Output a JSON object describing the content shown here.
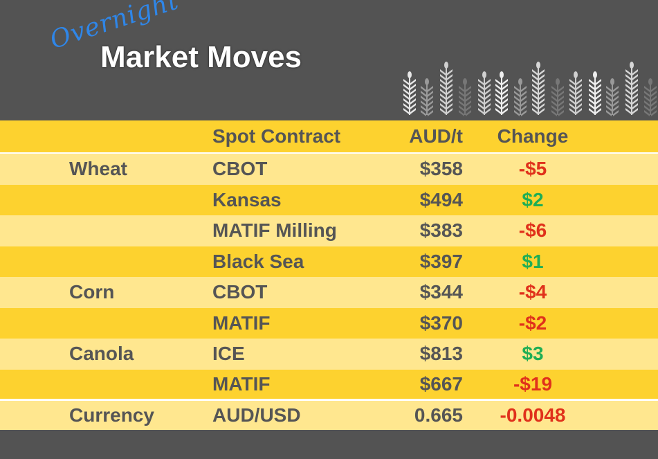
{
  "header": {
    "script_word": "Overnight",
    "title": "Market Moves",
    "decoration_icon": "wheat-stalks"
  },
  "colors": {
    "background": "#535353",
    "header_row": "#fdd22f",
    "row_light": "#ffe78f",
    "row_dark": "#fdd22f",
    "negative": "#e0311b",
    "positive": "#1fae55",
    "script": "#2f86e8"
  },
  "table": {
    "columns": [
      "",
      "Spot Contract",
      "AUD/t",
      "Change"
    ],
    "rows": [
      {
        "commodity": "Wheat",
        "contract": "CBOT",
        "price": "$358",
        "change": "-$5",
        "direction": "down"
      },
      {
        "commodity": "",
        "contract": "Kansas",
        "price": "$494",
        "change": "$2",
        "direction": "up"
      },
      {
        "commodity": "",
        "contract": "MATIF Milling",
        "price": "$383",
        "change": "-$6",
        "direction": "down"
      },
      {
        "commodity": "",
        "contract": "Black Sea",
        "price": "$397",
        "change": "$1",
        "direction": "up"
      },
      {
        "commodity": "Corn",
        "contract": "CBOT",
        "price": "$344",
        "change": "-$4",
        "direction": "down"
      },
      {
        "commodity": "",
        "contract": "MATIF",
        "price": "$370",
        "change": "-$2",
        "direction": "down"
      },
      {
        "commodity": "Canola",
        "contract": "ICE",
        "price": "$813",
        "change": "$3",
        "direction": "up"
      },
      {
        "commodity": "",
        "contract": "MATIF",
        "price": "$667",
        "change": "-$19",
        "direction": "down"
      },
      {
        "commodity": "Currency",
        "contract": "AUD/USD",
        "price": "0.665",
        "change": "-0.0048",
        "direction": "down"
      }
    ]
  }
}
